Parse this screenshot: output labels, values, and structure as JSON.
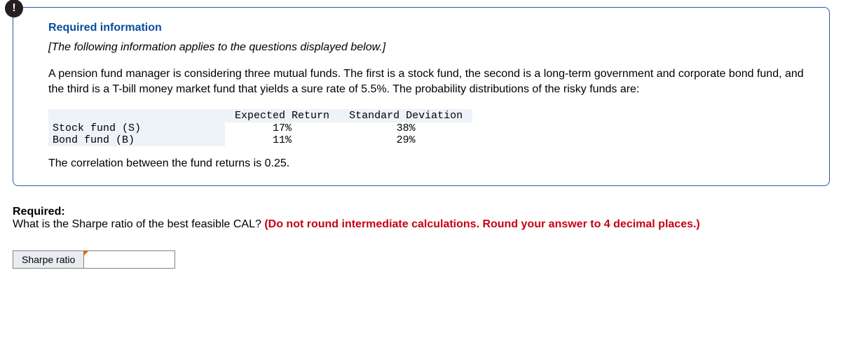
{
  "info_badge": "!",
  "required_info_title": "Required information",
  "applies_note": "[The following information applies to the questions displayed below.]",
  "body_text": "A pension fund manager is considering three mutual funds. The first is a stock fund, the second is a long-term government and corporate bond fund, and the third is a T-bill money market fund that yields a sure rate of 5.5%. The probability distributions of the risky funds are:",
  "table": {
    "headers": {
      "col1": "",
      "col2": "Expected Return",
      "col3": "Standard Deviation"
    },
    "rows": [
      {
        "label": "Stock fund (S)",
        "er": "17%",
        "sd": "38%"
      },
      {
        "label": "Bond fund (B)",
        "er": "11%",
        "sd": "29%"
      }
    ]
  },
  "correlation_text": "The correlation between the fund returns is 0.25.",
  "required_label": "Required:",
  "question_text": "What is the Sharpe ratio of the best feasible CAL? ",
  "instruction_text": "(Do not round intermediate calculations. Round your answer to 4 decimal places.)",
  "answer_label": "Sharpe ratio",
  "answer_value": ""
}
